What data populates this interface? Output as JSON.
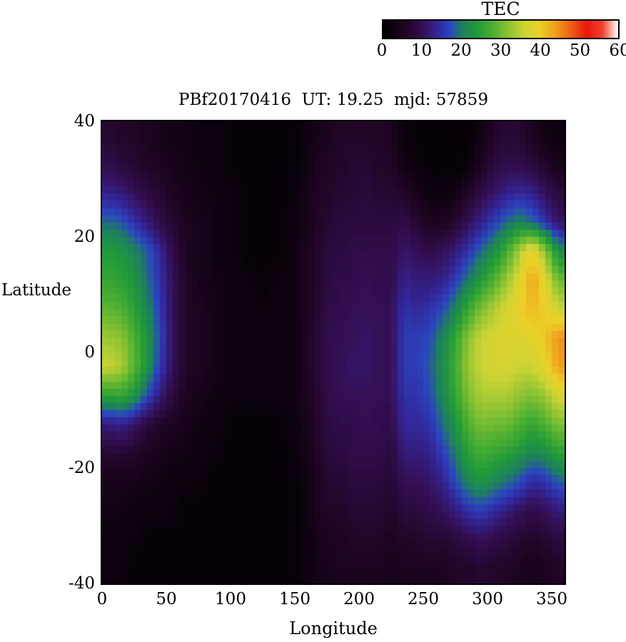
{
  "chart_data": {
    "type": "heatmap",
    "title": "PBf20170416  UT: 19.25  mjd: 57859",
    "xlabel": "Longitude",
    "ylabel": "Latitude",
    "xlim": [
      0,
      360
    ],
    "ylim": [
      -40,
      40
    ],
    "zlim": [
      0,
      60
    ],
    "x_ticks": [
      0,
      50,
      100,
      150,
      200,
      250,
      300,
      350
    ],
    "y_ticks": [
      40,
      20,
      0,
      -20,
      -40
    ],
    "colorbar": {
      "label": "TEC",
      "ticks": [
        0,
        10,
        20,
        30,
        40,
        50,
        60
      ]
    },
    "grid_lon_start": 0,
    "grid_lon_step": 10,
    "grid_lat_top": 40,
    "grid_lat_step": -5,
    "colormap": [
      {
        "v": 0,
        "c": "#000000"
      },
      {
        "v": 6,
        "c": "#220527"
      },
      {
        "v": 10,
        "c": "#340f55"
      },
      {
        "v": 14,
        "c": "#33279b"
      },
      {
        "v": 17,
        "c": "#2a46c0"
      },
      {
        "v": 20,
        "c": "#1e7e62"
      },
      {
        "v": 24,
        "c": "#219a38"
      },
      {
        "v": 28,
        "c": "#4caf32"
      },
      {
        "v": 32,
        "c": "#8cc332"
      },
      {
        "v": 36,
        "c": "#ccd434"
      },
      {
        "v": 40,
        "c": "#ecd028"
      },
      {
        "v": 44,
        "c": "#f0a01e"
      },
      {
        "v": 48,
        "c": "#ee5f14"
      },
      {
        "v": 52,
        "c": "#e8180c"
      },
      {
        "v": 56,
        "c": "#f2412e"
      },
      {
        "v": 58,
        "c": "#fa9c8c"
      },
      {
        "v": 60,
        "c": "#ffffff"
      }
    ],
    "grid": [
      [
        7,
        6,
        6,
        5,
        4,
        3,
        3,
        2,
        2,
        2,
        1,
        1,
        1,
        1,
        1,
        2,
        3,
        5,
        6,
        6,
        6,
        6,
        5,
        2,
        1,
        1,
        1,
        1,
        1,
        3,
        6,
        7,
        7,
        5,
        3,
        2
      ],
      [
        9,
        8,
        7,
        6,
        5,
        4,
        3,
        3,
        2,
        2,
        1,
        1,
        1,
        1,
        1,
        2,
        4,
        6,
        6,
        7,
        7,
        6,
        6,
        3,
        2,
        1,
        1,
        1,
        2,
        5,
        8,
        9,
        9,
        8,
        6,
        4
      ],
      [
        13,
        12,
        10,
        8,
        7,
        5,
        4,
        3,
        3,
        2,
        2,
        1,
        1,
        1,
        1,
        3,
        5,
        6,
        7,
        7,
        8,
        7,
        7,
        6,
        4,
        2,
        2,
        3,
        6,
        9,
        11,
        13,
        14,
        13,
        10,
        8
      ],
      [
        19,
        18,
        15,
        12,
        9,
        7,
        5,
        4,
        3,
        2,
        2,
        1,
        1,
        1,
        2,
        3,
        5,
        7,
        8,
        8,
        8,
        8,
        8,
        9,
        7,
        5,
        5,
        7,
        10,
        13,
        16,
        19,
        21,
        19,
        15,
        11
      ],
      [
        24,
        23,
        21,
        18,
        14,
        9,
        5,
        4,
        3,
        2,
        2,
        1,
        1,
        1,
        2,
        4,
        6,
        8,
        8,
        9,
        9,
        9,
        9,
        11,
        10,
        9,
        10,
        12,
        15,
        19,
        22,
        27,
        34,
        40,
        32,
        22
      ],
      [
        26,
        25,
        23,
        19,
        15,
        10,
        6,
        4,
        3,
        3,
        2,
        2,
        1,
        2,
        2,
        4,
        6,
        8,
        9,
        9,
        10,
        9,
        9,
        13,
        12,
        12,
        13,
        16,
        20,
        24,
        28,
        33,
        38,
        44,
        38,
        30
      ],
      [
        29,
        28,
        25,
        21,
        16,
        10,
        6,
        5,
        4,
        3,
        2,
        2,
        2,
        2,
        2,
        4,
        6,
        9,
        9,
        10,
        10,
        10,
        10,
        15,
        14,
        15,
        17,
        21,
        26,
        31,
        34,
        37,
        40,
        42,
        40,
        36
      ],
      [
        33,
        32,
        28,
        23,
        17,
        10,
        6,
        5,
        4,
        3,
        2,
        2,
        2,
        2,
        2,
        4,
        7,
        9,
        10,
        10,
        11,
        10,
        10,
        16,
        16,
        17,
        21,
        26,
        32,
        36,
        37,
        38,
        38,
        39,
        41,
        45
      ],
      [
        36,
        34,
        29,
        23,
        16,
        10,
        6,
        5,
        4,
        3,
        2,
        2,
        2,
        2,
        2,
        4,
        7,
        9,
        10,
        11,
        11,
        10,
        10,
        16,
        16,
        18,
        22,
        27,
        33,
        36,
        37,
        37,
        36,
        36,
        39,
        44
      ],
      [
        25,
        26,
        23,
        17,
        12,
        8,
        5,
        4,
        3,
        2,
        2,
        2,
        2,
        2,
        2,
        4,
        6,
        9,
        10,
        10,
        10,
        10,
        10,
        15,
        15,
        17,
        21,
        26,
        31,
        34,
        34,
        34,
        32,
        31,
        33,
        37
      ],
      [
        12,
        13,
        11,
        8,
        6,
        5,
        4,
        3,
        2,
        2,
        1,
        1,
        1,
        1,
        2,
        3,
        6,
        8,
        9,
        9,
        10,
        9,
        9,
        14,
        14,
        15,
        19,
        23,
        28,
        31,
        30,
        30,
        28,
        26,
        28,
        31
      ],
      [
        7,
        7,
        6,
        5,
        4,
        3,
        3,
        2,
        2,
        1,
        1,
        1,
        1,
        1,
        1,
        3,
        5,
        8,
        8,
        9,
        9,
        9,
        8,
        12,
        12,
        13,
        16,
        20,
        25,
        27,
        26,
        25,
        23,
        21,
        22,
        25
      ],
      [
        4,
        4,
        4,
        3,
        3,
        2,
        2,
        2,
        1,
        1,
        1,
        1,
        1,
        1,
        1,
        2,
        4,
        7,
        7,
        8,
        8,
        8,
        7,
        10,
        10,
        11,
        13,
        17,
        21,
        23,
        21,
        19,
        17,
        14,
        15,
        18
      ],
      [
        3,
        3,
        2,
        2,
        2,
        2,
        1,
        1,
        1,
        1,
        1,
        1,
        1,
        1,
        1,
        2,
        4,
        6,
        6,
        7,
        7,
        7,
        6,
        8,
        8,
        9,
        10,
        12,
        15,
        16,
        14,
        12,
        10,
        9,
        10,
        12
      ],
      [
        2,
        2,
        2,
        1,
        1,
        1,
        1,
        1,
        1,
        1,
        1,
        1,
        1,
        1,
        1,
        2,
        3,
        5,
        5,
        6,
        6,
        6,
        5,
        6,
        6,
        7,
        7,
        8,
        9,
        10,
        9,
        8,
        7,
        6,
        7,
        8
      ],
      [
        2,
        2,
        1,
        1,
        1,
        1,
        1,
        1,
        1,
        1,
        1,
        1,
        1,
        1,
        1,
        2,
        3,
        4,
        5,
        5,
        5,
        5,
        4,
        5,
        5,
        5,
        5,
        6,
        6,
        7,
        6,
        6,
        5,
        4,
        5,
        6
      ]
    ]
  }
}
